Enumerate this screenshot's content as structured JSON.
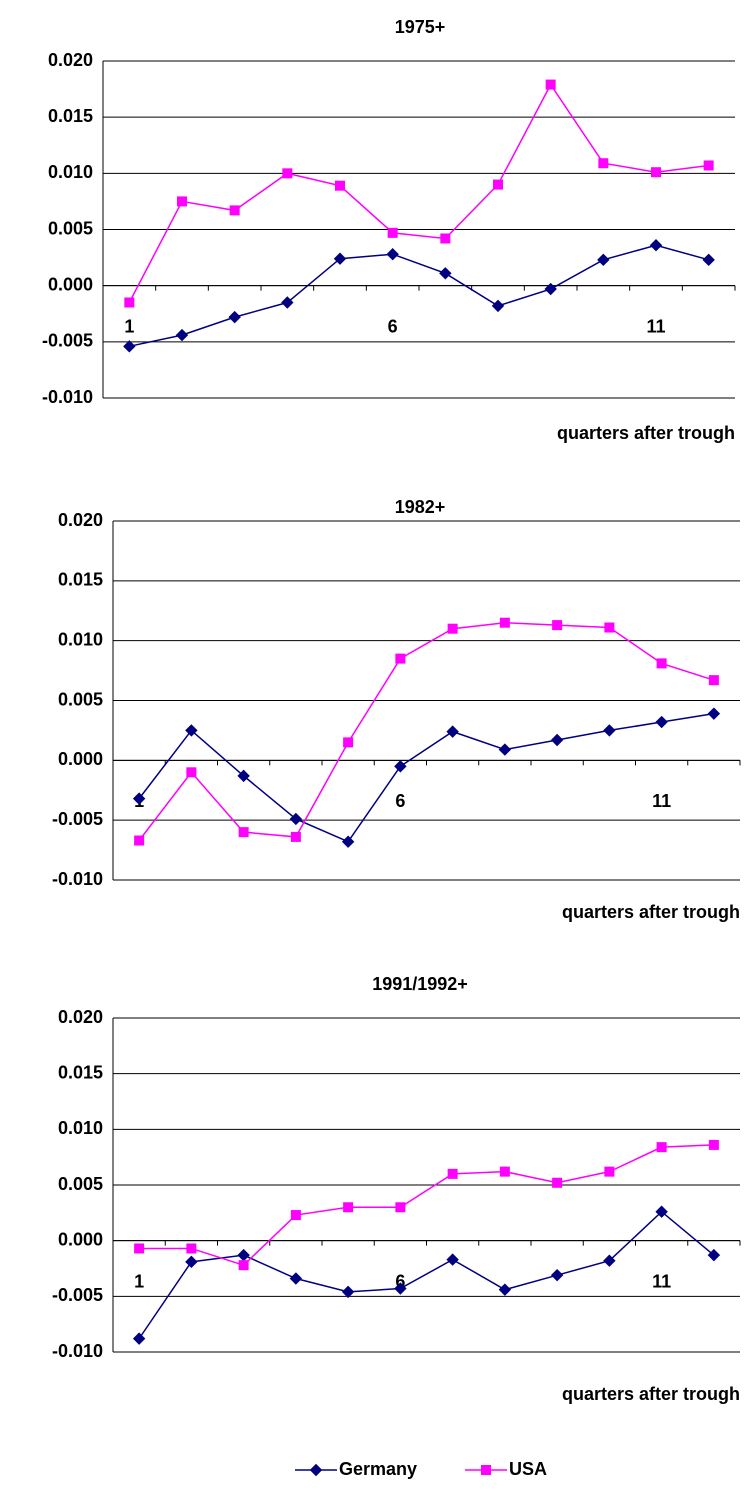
{
  "chart_data": [
    {
      "type": "line",
      "title": "1975+",
      "xlabel": "quarters after trough",
      "categories": [
        "1",
        null,
        null,
        null,
        null,
        "6",
        null,
        null,
        null,
        null,
        "11",
        null
      ],
      "series": [
        {
          "name": "Germany",
          "color": "#000080",
          "marker": "diamond",
          "values": [
            -0.0054,
            -0.0044,
            -0.0028,
            -0.0015,
            0.0024,
            0.0028,
            0.0011,
            -0.0018,
            -0.0003,
            0.0023,
            0.0036,
            0.0023
          ]
        },
        {
          "name": "USA",
          "color": "#ff00ff",
          "marker": "square",
          "values": [
            -0.0015,
            0.0075,
            0.0067,
            0.01,
            0.0089,
            0.0047,
            0.0042,
            0.009,
            0.0179,
            0.0109,
            0.0101,
            0.0107
          ]
        }
      ],
      "ylim": [
        -0.01,
        0.02
      ],
      "yticks": [
        {
          "value": -0.01,
          "label": "-0.010"
        },
        -0.005,
        {
          "value": 0,
          "label": "0.000"
        },
        0.005,
        {
          "value": 0.01,
          "label": "0.010"
        },
        0.015,
        {
          "value": 0.02,
          "label": "0.020"
        }
      ],
      "grid": true,
      "legend": "bottom"
    },
    {
      "type": "line",
      "title": "1982+",
      "xlabel": "quarters after trough",
      "categories": [
        "1",
        null,
        null,
        null,
        null,
        "6",
        null,
        null,
        null,
        null,
        "11",
        null
      ],
      "series": [
        {
          "name": "Germany",
          "color": "#000080",
          "marker": "diamond",
          "values": [
            -0.0032,
            0.0025,
            -0.0013,
            -0.0049,
            -0.0068,
            -0.0005,
            0.0024,
            0.0009,
            0.0017,
            0.0025,
            0.0032,
            0.0039
          ]
        },
        {
          "name": "USA",
          "color": "#ff00ff",
          "marker": "square",
          "values": [
            -0.0067,
            -0.001,
            -0.006,
            -0.0064,
            0.0015,
            0.0085,
            0.011,
            0.0115,
            0.0113,
            0.0111,
            0.0081,
            0.0067
          ]
        }
      ],
      "ylim": [
        -0.01,
        0.02
      ],
      "yticks": [
        {
          "value": -0.01,
          "label": "-0.010"
        },
        -0.005,
        {
          "value": 0,
          "label": "0.000"
        },
        0.005,
        {
          "value": 0.01,
          "label": "0.010"
        },
        0.015,
        {
          "value": 0.02,
          "label": "0.020"
        }
      ],
      "grid": true
    },
    {
      "type": "line",
      "title": "1991/1992+",
      "xlabel": "quarters after trough",
      "categories": [
        "1",
        null,
        null,
        null,
        null,
        "6",
        null,
        null,
        null,
        null,
        "11",
        null
      ],
      "series": [
        {
          "name": "Germany",
          "color": "#000080",
          "marker": "diamond",
          "values": [
            -0.0088,
            -0.0019,
            -0.0013,
            -0.0034,
            -0.0046,
            -0.0043,
            -0.0017,
            -0.0044,
            -0.0031,
            -0.0018,
            0.0026,
            -0.0013
          ]
        },
        {
          "name": "USA",
          "color": "#ff00ff",
          "marker": "square",
          "values": [
            -0.0007,
            -0.0007,
            -0.0022,
            0.0023,
            0.003,
            0.003,
            0.006,
            0.0062,
            0.0052,
            0.0062,
            0.0084,
            0.0086
          ]
        }
      ],
      "ylim": [
        -0.01,
        0.02
      ],
      "yticks": [
        {
          "value": -0.01,
          "label": "-0.010"
        },
        -0.005,
        {
          "value": 0,
          "label": "0.000"
        },
        0.005,
        {
          "value": 0.01,
          "label": "0.010"
        },
        0.015,
        {
          "value": 0.02,
          "label": "0.020"
        }
      ],
      "grid": true
    }
  ]
}
